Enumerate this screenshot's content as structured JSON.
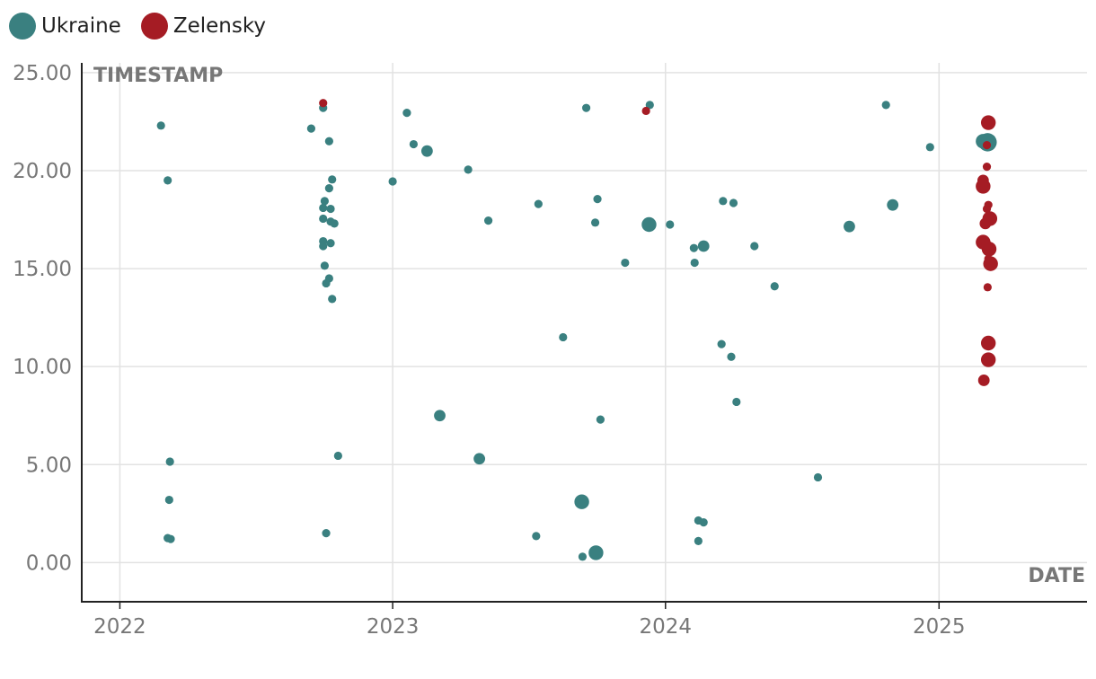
{
  "legend": [
    {
      "name": "Ukraine",
      "color": "#3a8080"
    },
    {
      "name": "Zelensky",
      "color": "#a51c24"
    }
  ],
  "chart_data": {
    "type": "scatter",
    "title": "",
    "xlabel": "DATE",
    "ylabel": "TIMESTAMP",
    "x_type": "date",
    "xlim": [
      "2021-11-11",
      "2025-07-18"
    ],
    "ylim": [
      -2,
      25.5
    ],
    "x_ticks": [
      "2022",
      "2023",
      "2024",
      "2025"
    ],
    "y_ticks": [
      0,
      5,
      10,
      15,
      20,
      25
    ],
    "y_tick_labels": [
      "0.00",
      "5.00",
      "10.00",
      "15.00",
      "20.00",
      "25.00"
    ],
    "grid": true,
    "legend_position": "top-left",
    "series": [
      {
        "name": "Ukraine",
        "color": "#3a8080",
        "points": [
          {
            "x": "2022-02-25",
            "y": 22.3,
            "size": "small"
          },
          {
            "x": "2022-03-06",
            "y": 19.5,
            "size": "small"
          },
          {
            "x": "2022-03-09",
            "y": 5.15,
            "size": "small"
          },
          {
            "x": "2022-03-08",
            "y": 3.2,
            "size": "small"
          },
          {
            "x": "2022-03-06",
            "y": 1.25,
            "size": "small"
          },
          {
            "x": "2022-03-10",
            "y": 1.2,
            "size": "small"
          },
          {
            "x": "2022-09-14",
            "y": 22.15,
            "size": "small"
          },
          {
            "x": "2022-09-30",
            "y": 23.2,
            "size": "small"
          },
          {
            "x": "2022-10-08",
            "y": 21.5,
            "size": "small"
          },
          {
            "x": "2022-10-08",
            "y": 19.1,
            "size": "small"
          },
          {
            "x": "2022-10-12",
            "y": 19.55,
            "size": "small"
          },
          {
            "x": "2022-10-02",
            "y": 18.45,
            "size": "small"
          },
          {
            "x": "2022-09-30",
            "y": 18.1,
            "size": "small"
          },
          {
            "x": "2022-10-10",
            "y": 18.05,
            "size": "small"
          },
          {
            "x": "2022-09-30",
            "y": 17.55,
            "size": "small"
          },
          {
            "x": "2022-10-10",
            "y": 17.4,
            "size": "small"
          },
          {
            "x": "2022-10-15",
            "y": 17.3,
            "size": "small"
          },
          {
            "x": "2022-09-30",
            "y": 16.4,
            "size": "small"
          },
          {
            "x": "2022-09-30",
            "y": 16.15,
            "size": "small"
          },
          {
            "x": "2022-10-10",
            "y": 16.3,
            "size": "small"
          },
          {
            "x": "2022-10-02",
            "y": 15.15,
            "size": "small"
          },
          {
            "x": "2022-10-08",
            "y": 14.5,
            "size": "small"
          },
          {
            "x": "2022-10-04",
            "y": 14.25,
            "size": "small"
          },
          {
            "x": "2022-10-12",
            "y": 13.45,
            "size": "small"
          },
          {
            "x": "2022-10-20",
            "y": 5.45,
            "size": "small"
          },
          {
            "x": "2022-10-04",
            "y": 1.5,
            "size": "small"
          },
          {
            "x": "2023-01-01",
            "y": 19.45,
            "size": "small"
          },
          {
            "x": "2023-01-20",
            "y": 22.95,
            "size": "small"
          },
          {
            "x": "2023-01-29",
            "y": 21.35,
            "size": "small"
          },
          {
            "x": "2023-02-16",
            "y": 21.0,
            "size": "medium"
          },
          {
            "x": "2023-04-12",
            "y": 20.05,
            "size": "small"
          },
          {
            "x": "2023-05-09",
            "y": 17.45,
            "size": "small"
          },
          {
            "x": "2023-03-05",
            "y": 7.5,
            "size": "medium"
          },
          {
            "x": "2023-04-27",
            "y": 5.3,
            "size": "medium"
          },
          {
            "x": "2023-07-15",
            "y": 18.3,
            "size": "small"
          },
          {
            "x": "2023-08-17",
            "y": 11.5,
            "size": "small"
          },
          {
            "x": "2023-07-12",
            "y": 1.35,
            "size": "small"
          },
          {
            "x": "2023-09-17",
            "y": 23.2,
            "size": "small"
          },
          {
            "x": "2023-10-02",
            "y": 18.55,
            "size": "small"
          },
          {
            "x": "2023-09-29",
            "y": 17.35,
            "size": "small"
          },
          {
            "x": "2023-10-06",
            "y": 7.3,
            "size": "small"
          },
          {
            "x": "2023-09-11",
            "y": 3.1,
            "size": "large"
          },
          {
            "x": "2023-09-12",
            "y": 0.3,
            "size": "small"
          },
          {
            "x": "2023-09-30",
            "y": 0.5,
            "size": "large"
          },
          {
            "x": "2023-11-08",
            "y": 15.3,
            "size": "small"
          },
          {
            "x": "2023-12-11",
            "y": 23.35,
            "size": "small"
          },
          {
            "x": "2023-12-10",
            "y": 17.25,
            "size": "large"
          },
          {
            "x": "2024-01-07",
            "y": 17.25,
            "size": "small"
          },
          {
            "x": "2024-02-08",
            "y": 16.05,
            "size": "small"
          },
          {
            "x": "2024-02-21",
            "y": 16.15,
            "size": "medium"
          },
          {
            "x": "2024-02-09",
            "y": 15.3,
            "size": "small"
          },
          {
            "x": "2024-03-18",
            "y": 18.45,
            "size": "small"
          },
          {
            "x": "2024-04-01",
            "y": 18.35,
            "size": "small"
          },
          {
            "x": "2024-04-29",
            "y": 16.15,
            "size": "small"
          },
          {
            "x": "2024-05-26",
            "y": 14.1,
            "size": "small"
          },
          {
            "x": "2024-03-16",
            "y": 11.15,
            "size": "small"
          },
          {
            "x": "2024-03-29",
            "y": 10.5,
            "size": "small"
          },
          {
            "x": "2024-04-05",
            "y": 8.2,
            "size": "small"
          },
          {
            "x": "2024-02-14",
            "y": 2.15,
            "size": "small"
          },
          {
            "x": "2024-02-21",
            "y": 2.05,
            "size": "small"
          },
          {
            "x": "2024-02-14",
            "y": 1.1,
            "size": "small"
          },
          {
            "x": "2024-07-23",
            "y": 4.35,
            "size": "small"
          },
          {
            "x": "2024-09-03",
            "y": 17.15,
            "size": "medium"
          },
          {
            "x": "2024-10-22",
            "y": 23.35,
            "size": "small"
          },
          {
            "x": "2024-10-31",
            "y": 18.25,
            "size": "medium"
          },
          {
            "x": "2024-12-20",
            "y": 21.2,
            "size": "small"
          },
          {
            "x": "2025-03-01",
            "y": 21.5,
            "size": "large"
          },
          {
            "x": "2025-03-07",
            "y": 21.45,
            "size": "xlarge"
          }
        ]
      },
      {
        "name": "Zelensky",
        "color": "#a51c24",
        "points": [
          {
            "x": "2022-09-30",
            "y": 23.45,
            "size": "small"
          },
          {
            "x": "2023-12-06",
            "y": 23.05,
            "size": "small"
          },
          {
            "x": "2025-03-08",
            "y": 22.45,
            "size": "large"
          },
          {
            "x": "2025-03-06",
            "y": 21.3,
            "size": "small"
          },
          {
            "x": "2025-03-06",
            "y": 20.2,
            "size": "small"
          },
          {
            "x": "2025-03-01",
            "y": 19.5,
            "size": "medium"
          },
          {
            "x": "2025-03-01",
            "y": 19.2,
            "size": "large"
          },
          {
            "x": "2025-03-08",
            "y": 18.25,
            "size": "small"
          },
          {
            "x": "2025-03-06",
            "y": 18.05,
            "size": "small"
          },
          {
            "x": "2025-03-10",
            "y": 17.55,
            "size": "large"
          },
          {
            "x": "2025-03-04",
            "y": 17.3,
            "size": "medium"
          },
          {
            "x": "2025-03-01",
            "y": 16.35,
            "size": "large"
          },
          {
            "x": "2025-03-06",
            "y": 16.15,
            "size": "medium"
          },
          {
            "x": "2025-03-09",
            "y": 16.0,
            "size": "large"
          },
          {
            "x": "2025-03-08",
            "y": 15.5,
            "size": "small"
          },
          {
            "x": "2025-03-11",
            "y": 15.25,
            "size": "large"
          },
          {
            "x": "2025-03-07",
            "y": 14.05,
            "size": "small"
          },
          {
            "x": "2025-03-08",
            "y": 11.2,
            "size": "large"
          },
          {
            "x": "2025-03-08",
            "y": 10.35,
            "size": "large"
          },
          {
            "x": "2025-03-02",
            "y": 9.3,
            "size": "medium"
          }
        ]
      }
    ]
  }
}
